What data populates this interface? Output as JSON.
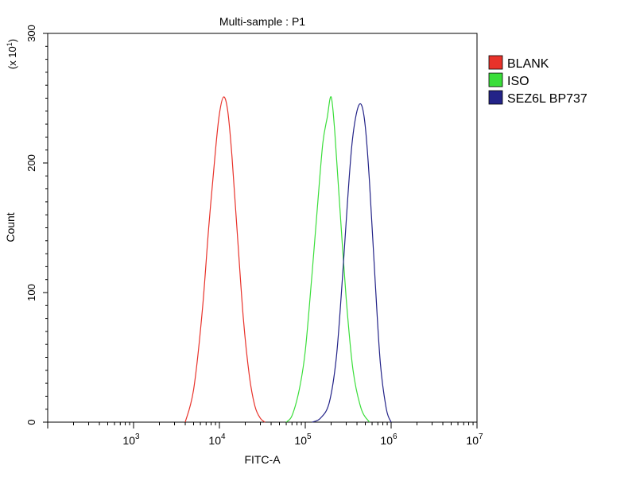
{
  "chart_data": {
    "type": "line",
    "title": "Multi-sample : P1",
    "xlabel": "FITC-A",
    "ylabel": "Count",
    "y_multiplier_label": "(x 10",
    "y_multiplier_exp": "1",
    "x_scale": "log",
    "xlim": [
      100,
      10000000
    ],
    "ylim": [
      0,
      300
    ],
    "x_ticks": [
      {
        "base": "10",
        "exp": "3",
        "value": 1000
      },
      {
        "base": "10",
        "exp": "4",
        "value": 10000
      },
      {
        "base": "10",
        "exp": "5",
        "value": 100000
      },
      {
        "base": "10",
        "exp": "6",
        "value": 1000000
      },
      {
        "base": "10",
        "exp": "7",
        "value": 10000000
      }
    ],
    "y_ticks": [
      {
        "label": "0",
        "value": 0
      },
      {
        "label": "100",
        "value": 100
      },
      {
        "label": "200",
        "value": 200
      },
      {
        "label": "300",
        "value": 300
      }
    ],
    "legend_position": "top-right",
    "series": [
      {
        "name": "BLANK",
        "color": "#e8322a",
        "x": [
          4000,
          5000,
          6300,
          7500,
          9000,
          10000,
          11200,
          12500,
          14000,
          16000,
          19000,
          22400,
          26000,
          30000,
          34000
        ],
        "y": [
          0,
          25,
          85,
          150,
          210,
          238,
          251,
          240,
          205,
          150,
          80,
          35,
          12,
          3,
          0
        ]
      },
      {
        "name": "ISO",
        "color": "#3ade3a",
        "x": [
          60000,
          70000,
          85000,
          100000,
          120000,
          140000,
          160000,
          180000,
          200000,
          220000,
          250000,
          300000,
          360000,
          450000,
          560000
        ],
        "y": [
          0,
          5,
          25,
          55,
          115,
          170,
          215,
          235,
          251,
          225,
          170,
          95,
          40,
          10,
          0
        ]
      },
      {
        "name": "SEZ6L BP737",
        "color": "#232388",
        "x": [
          120000,
          150000,
          190000,
          230000,
          270000,
          310000,
          350000,
          400000,
          450000,
          500000,
          560000,
          650000,
          750000,
          880000,
          1000000
        ],
        "y": [
          0,
          3,
          15,
          50,
          110,
          170,
          215,
          240,
          245,
          228,
          185,
          110,
          45,
          10,
          0
        ]
      }
    ]
  }
}
